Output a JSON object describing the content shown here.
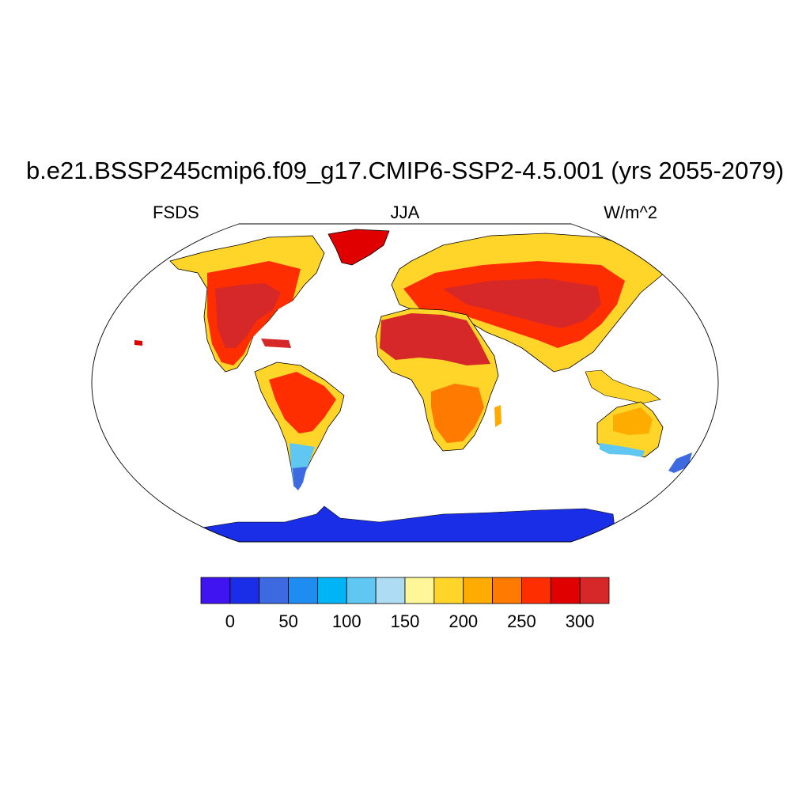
{
  "plot": {
    "title": "b.e21.BSSP245cmip6.f09_g17.CMIP6-SSP2-4.5.001 (yrs 2055-2079)",
    "variable": "FSDS",
    "season": "JJA",
    "units": "W/m^2"
  },
  "colorbar": {
    "colors": [
      "#3f14f0",
      "#1a2ee8",
      "#3d6ae0",
      "#1e8cf0",
      "#00b4f6",
      "#60c6f2",
      "#aedcf2",
      "#fff599",
      "#ffd52a",
      "#ffac00",
      "#ff7a00",
      "#ff2e00",
      "#e00000",
      "#d62828"
    ],
    "tick_labels": [
      "0",
      "50",
      "100",
      "150",
      "200",
      "250",
      "300"
    ]
  },
  "map_colors": {
    "ocean": "#ffffff",
    "outline": "#000000"
  }
}
